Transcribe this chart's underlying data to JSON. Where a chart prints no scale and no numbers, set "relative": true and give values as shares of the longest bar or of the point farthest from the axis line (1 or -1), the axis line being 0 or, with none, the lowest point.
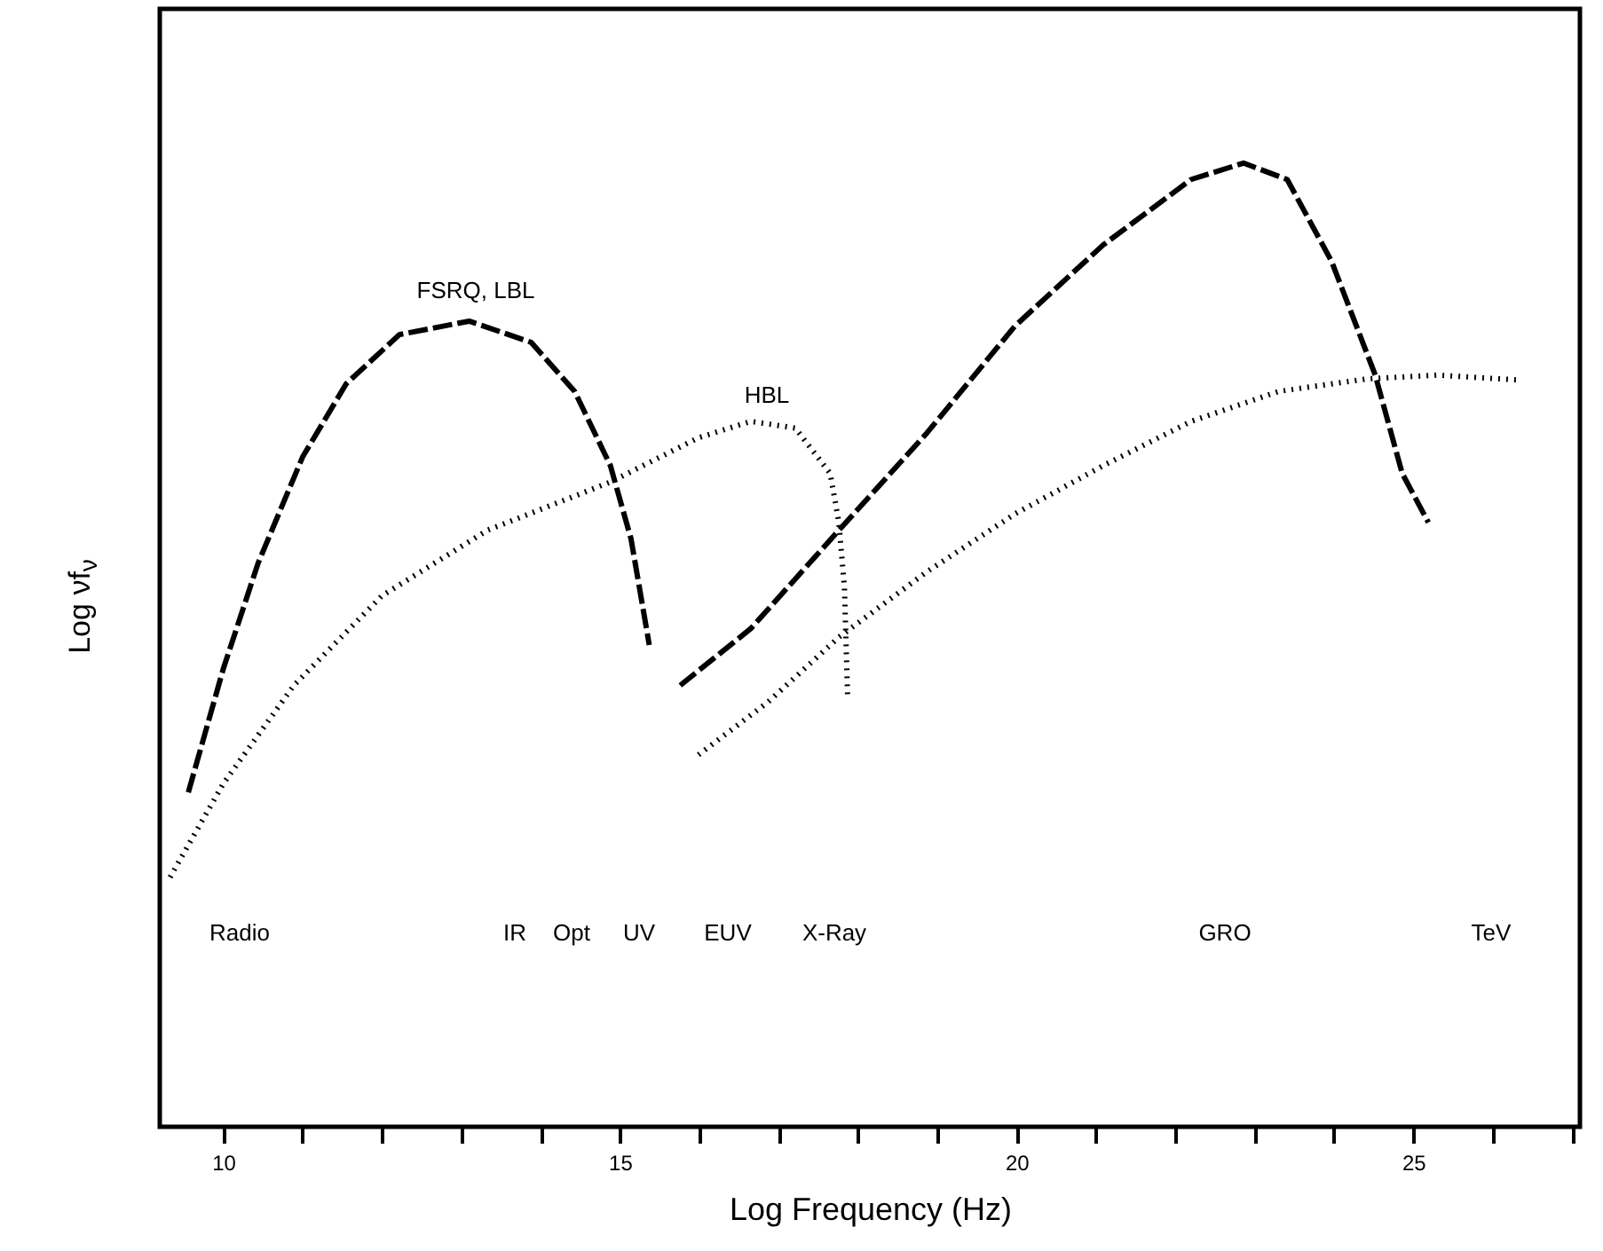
{
  "chart_data": {
    "type": "line",
    "relative": true,
    "xlabel": "Log Frequency (Hz)",
    "ylabel": "Log νf$_{ν}$",
    "xlim": [
      9.2,
      27.1
    ],
    "xticks": [
      10,
      {
        "value": 11,
        "label": null
      },
      {
        "value": 12,
        "label": null
      },
      {
        "value": 13,
        "label": null
      },
      {
        "value": 14,
        "label": null
      },
      15,
      {
        "value": 16,
        "label": null
      },
      {
        "value": 17,
        "label": null
      },
      {
        "value": 18,
        "label": null
      },
      {
        "value": 19,
        "label": null
      },
      20,
      {
        "value": 21,
        "label": null
      },
      {
        "value": 22,
        "label": null
      },
      {
        "value": 23,
        "label": null
      },
      {
        "value": 24,
        "label": null
      },
      25,
      {
        "value": 26,
        "label": null
      },
      {
        "value": 27,
        "label": null
      }
    ],
    "grid": false,
    "legend": false,
    "marker": "none",
    "series": [
      {
        "color": "#000000",
        "line_style": "dashed",
        "x": [
          9.56,
          10,
          10.44,
          11.0,
          11.55,
          12.22,
          13.1,
          13.88,
          14.43,
          14.88,
          15.14,
          15.37
        ],
        "values": [
          0.347,
          0.475,
          0.585,
          0.695,
          0.771,
          0.822,
          0.836,
          0.814,
          0.763,
          0.686,
          0.61,
          0.5
        ]
      },
      {
        "color": "#000000",
        "line_style": "dashed",
        "x": [
          15.76,
          16.65,
          17.76,
          18.87,
          19.98,
          21.09,
          22.2,
          22.86,
          23.41,
          23.97,
          24.52,
          24.86,
          25.19
        ],
        "values": [
          0.458,
          0.517,
          0.619,
          0.72,
          0.831,
          0.915,
          0.983,
          1.0,
          0.983,
          0.898,
          0.78,
          0.678,
          0.627
        ]
      },
      {
        "color": "#000000",
        "line_style": "dotted",
        "x": [
          9.33,
          10,
          10.89,
          12.0,
          13.33,
          14.88,
          15.99,
          16.65,
          17.21,
          17.65,
          17.76,
          17.83,
          17.87
        ],
        "values": [
          0.259,
          0.356,
          0.458,
          0.551,
          0.619,
          0.669,
          0.715,
          0.732,
          0.725,
          0.678,
          0.627,
          0.559,
          0.446
        ]
      },
      {
        "color": "#000000",
        "line_style": "dotted",
        "x": [
          15.99,
          16.87,
          17.76,
          18.87,
          19.98,
          21.09,
          22.2,
          23.3,
          24.41,
          25.3,
          26.3
        ],
        "values": [
          0.386,
          0.441,
          0.508,
          0.576,
          0.636,
          0.686,
          0.732,
          0.763,
          0.776,
          0.78,
          0.775
        ]
      }
    ],
    "annotations": [
      "FSRQ, LBL",
      "HBL",
      "Radio",
      "IR",
      "Opt",
      "UV",
      "EUV",
      "X-Ray",
      "GRO",
      "TeV"
    ]
  }
}
